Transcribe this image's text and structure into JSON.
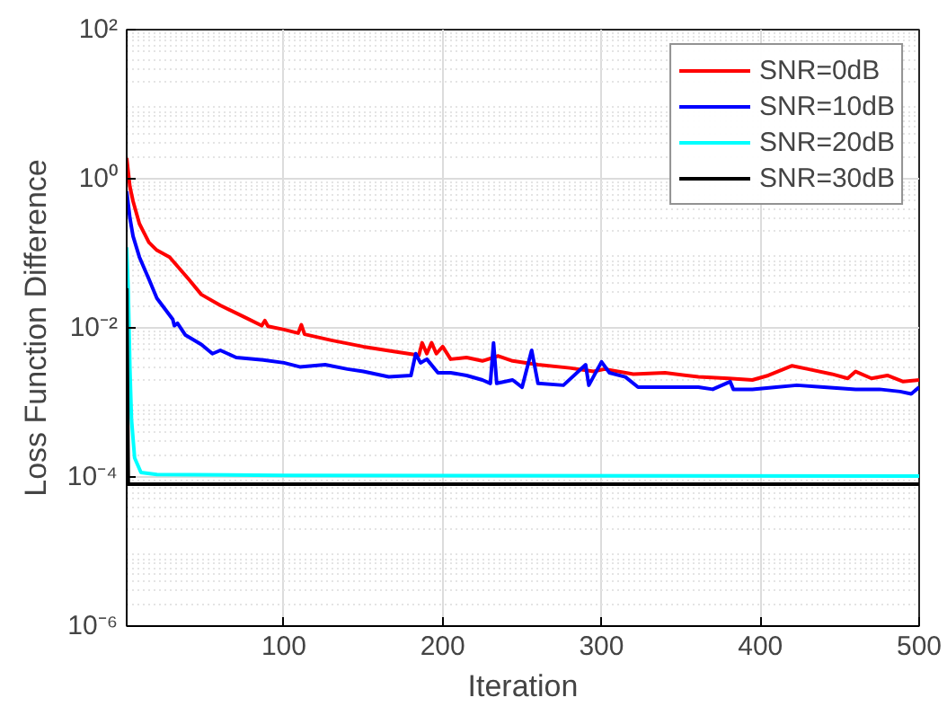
{
  "chart_data": {
    "type": "line",
    "xlabel": "Iteration",
    "ylabel": "Loss Function Difference",
    "log": "y",
    "grid": true,
    "legend": "top right",
    "line_style": "solid",
    "marker": "none",
    "xlim": [
      1,
      500
    ],
    "xticks": [
      100,
      200,
      300,
      400,
      500
    ],
    "ylim": [
      1e-06,
      100
    ],
    "yticks": [
      {
        "value": 1e-06,
        "label": "10⁻⁶"
      },
      {
        "value": 0.0001,
        "label": "10⁻⁴"
      },
      {
        "value": 0.01,
        "label": "10⁻²"
      },
      {
        "value": 1,
        "label": "10⁰"
      },
      {
        "value": 100,
        "label": "10²"
      }
    ],
    "series": [
      {
        "name": "SNR=0dB",
        "color": "#ff0000",
        "x": [
          1,
          3,
          5,
          9,
          15,
          20,
          28,
          40,
          48,
          60,
          75,
          86,
          88,
          90,
          100,
          109,
          111,
          113,
          130,
          150,
          170,
          185,
          187,
          190,
          193,
          196,
          200,
          205,
          215,
          225,
          235,
          244,
          260,
          280,
          295,
          302,
          320,
          340,
          361,
          380,
          395,
          405,
          420,
          430,
          445,
          455,
          460,
          470,
          480,
          490,
          500
        ],
        "values": [
          1.9,
          0.79,
          0.5,
          0.25,
          0.14,
          0.11,
          0.089,
          0.045,
          0.028,
          0.02,
          0.014,
          0.0107,
          0.0125,
          0.0105,
          0.0095,
          0.0085,
          0.011,
          0.0082,
          0.0068,
          0.0056,
          0.0048,
          0.0043,
          0.0063,
          0.0045,
          0.0063,
          0.0045,
          0.0056,
          0.0038,
          0.004,
          0.0036,
          0.0042,
          0.0036,
          0.0032,
          0.0029,
          0.0026,
          0.0028,
          0.0024,
          0.0025,
          0.0022,
          0.0021,
          0.002,
          0.0023,
          0.0031,
          0.0028,
          0.0024,
          0.0021,
          0.0026,
          0.0021,
          0.0023,
          0.0019,
          0.002
        ]
      },
      {
        "name": "SNR=10dB",
        "color": "#0000ff",
        "x": [
          1,
          3,
          5,
          9,
          15,
          20,
          25,
          30,
          31,
          33,
          38,
          48,
          55,
          60,
          70,
          87,
          100,
          110,
          126,
          140,
          150,
          166,
          180,
          183,
          186,
          190,
          197,
          205,
          215,
          225,
          230,
          232,
          234,
          244,
          250,
          256,
          260,
          276,
          290,
          292,
          300,
          305,
          315,
          323,
          340,
          361,
          370,
          381,
          383,
          395,
          410,
          423,
          440,
          460,
          475,
          488,
          495,
          500
        ],
        "values": [
          0.68,
          0.3,
          0.17,
          0.089,
          0.045,
          0.025,
          0.018,
          0.013,
          0.0107,
          0.0115,
          0.008,
          0.006,
          0.0045,
          0.005,
          0.004,
          0.0037,
          0.0034,
          0.003,
          0.0032,
          0.0028,
          0.0026,
          0.0022,
          0.0023,
          0.0045,
          0.0034,
          0.0038,
          0.0025,
          0.0025,
          0.0023,
          0.002,
          0.0018,
          0.0063,
          0.0018,
          0.002,
          0.0016,
          0.005,
          0.0018,
          0.0017,
          0.0032,
          0.0017,
          0.0035,
          0.0025,
          0.0022,
          0.0016,
          0.0016,
          0.0016,
          0.0015,
          0.0019,
          0.0015,
          0.0015,
          0.0016,
          0.0017,
          0.0016,
          0.0015,
          0.0015,
          0.0014,
          0.0013,
          0.0016
        ]
      },
      {
        "name": "SNR=20dB",
        "color": "#00ffff",
        "x": [
          1,
          2,
          3,
          4,
          6,
          10,
          20,
          100,
          500
        ],
        "values": [
          0.12,
          0.03,
          0.003,
          0.0006,
          0.00018,
          0.000115,
          0.000108,
          0.000105,
          0.000103
        ]
      },
      {
        "name": "SNR=30dB",
        "color": "#000000",
        "x": [
          1,
          2,
          500
        ],
        "values": [
          0.034,
          8e-05,
          8e-05
        ]
      }
    ]
  }
}
